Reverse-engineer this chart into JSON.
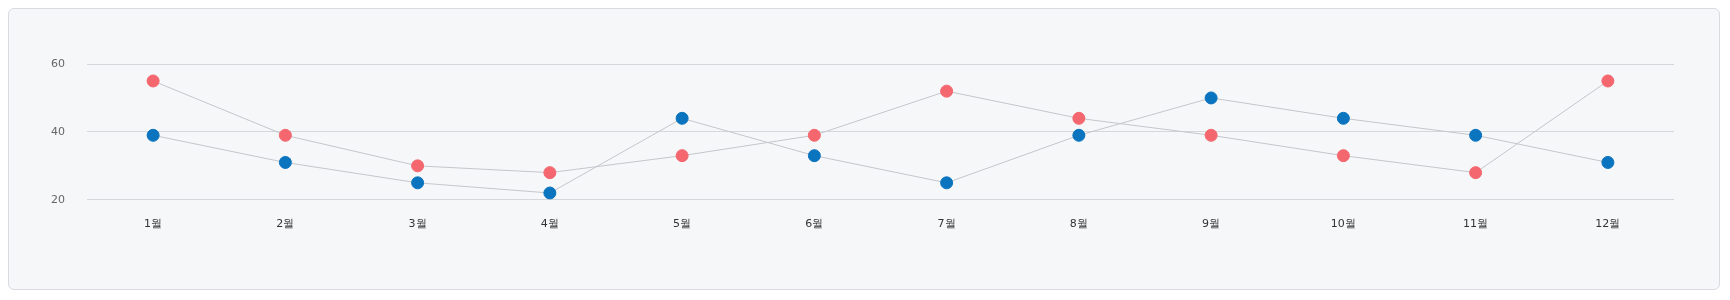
{
  "chart_data": {
    "type": "line",
    "categories": [
      "1월",
      "2월",
      "3월",
      "4월",
      "5월",
      "6월",
      "7월",
      "8월",
      "9월",
      "10월",
      "11월",
      "12월"
    ],
    "series": [
      {
        "color": "#f4676f",
        "values": [
          55,
          39,
          30,
          28,
          33,
          39,
          52,
          44,
          39,
          33,
          28,
          55
        ]
      },
      {
        "color": "#0a74bf",
        "values": [
          39,
          31,
          25,
          22,
          44,
          33,
          25,
          39,
          50,
          44,
          39,
          31
        ]
      }
    ],
    "ylim": [
      20,
      60
    ],
    "yticks": [
      20,
      40,
      60
    ],
    "grid": "y",
    "legend": false,
    "marker": "circle",
    "line_style": "solid"
  }
}
